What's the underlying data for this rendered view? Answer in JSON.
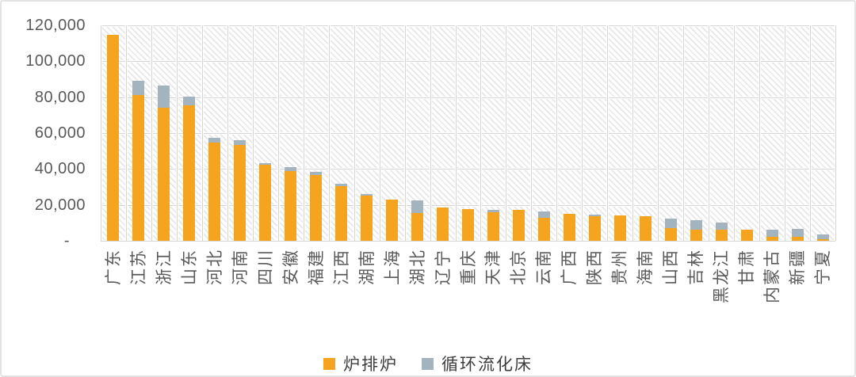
{
  "figure": {
    "background": "#ffffff",
    "border_color": "#e3e3e3",
    "axis_text_color": "#595959",
    "gridline_color": "#d6d6d6",
    "hatch_color": "#e7e7e7"
  },
  "chart_data": {
    "type": "bar",
    "stacked": true,
    "title": "",
    "xlabel": "",
    "ylabel": "",
    "grid": true,
    "legend_position": "bottom",
    "plot_area_pattern": "diagonal-hatch",
    "ylim": [
      0,
      120000
    ],
    "ytick_interval": 20000,
    "ytick_labels": [
      "120,000",
      "100,000",
      "80,000",
      "60,000",
      "40,000",
      "20,000",
      "-"
    ],
    "categories": [
      "广东",
      "江苏",
      "浙江",
      "山东",
      "河北",
      "河南",
      "四川",
      "安徽",
      "福建",
      "江西",
      "湖南",
      "上海",
      "湖北",
      "辽宁",
      "重庆",
      "天津",
      "北京",
      "云南",
      "广西",
      "陕西",
      "贵州",
      "海南",
      "山西",
      "吉林",
      "黑龙江",
      "甘肃",
      "内蒙古",
      "新疆",
      "宁夏"
    ],
    "series": [
      {
        "name": "炉排炉",
        "color": "#F6A31E",
        "values": [
          114800,
          81000,
          74000,
          75500,
          54500,
          53500,
          42300,
          38700,
          36800,
          30500,
          25100,
          23000,
          15500,
          18400,
          17800,
          16000,
          17300,
          12800,
          14800,
          13700,
          14200,
          13600,
          7000,
          6000,
          6200,
          6000,
          2200,
          2000,
          700
        ]
      },
      {
        "name": "循环流化床",
        "color": "#A3B4BE",
        "values": [
          0,
          8000,
          12500,
          5000,
          2500,
          2500,
          1100,
          2200,
          1800,
          1500,
          1000,
          0,
          7000,
          0,
          0,
          1500,
          0,
          3400,
          0,
          1000,
          0,
          0,
          5200,
          5500,
          3800,
          0,
          4000,
          4300,
          2600
        ]
      }
    ]
  },
  "layout_text": {}
}
